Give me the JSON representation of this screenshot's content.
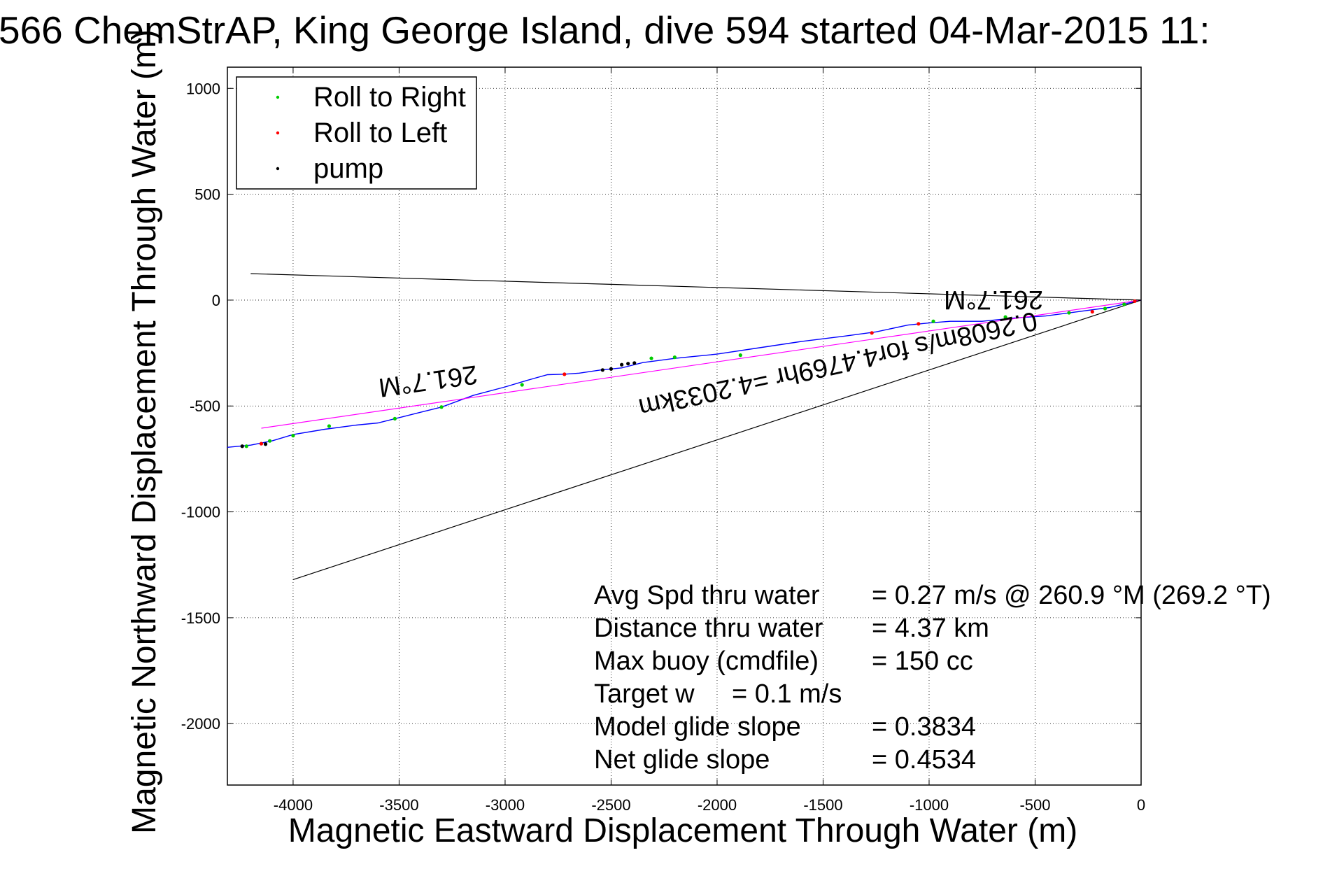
{
  "chart_data": {
    "type": "line",
    "title": "566 ChemStrAP, King George Island, dive 594 started 04-Mar-2015 11:",
    "xlabel": "Magnetic Eastward Displacement Through Water (m)",
    "ylabel": "Magnetic Northward Displacement Through Water (m)",
    "xlim": [
      -4310,
      0
    ],
    "ylim": [
      -2290,
      1100
    ],
    "xticks": [
      -4000,
      -3500,
      -3000,
      -2500,
      -2000,
      -1500,
      -1000,
      -500,
      0
    ],
    "yticks": [
      1000,
      500,
      0,
      -500,
      -1000,
      -1500,
      -2000
    ],
    "grid": true,
    "legend": {
      "position": "top-left",
      "entries": [
        {
          "label": "Roll to Right",
          "color": "#00cc00",
          "marker": "dot"
        },
        {
          "label": "Roll to Left",
          "color": "#ff0000",
          "marker": "dot"
        },
        {
          "label": "pump",
          "color": "#000000",
          "marker": "dot"
        }
      ]
    },
    "series": [
      {
        "color": "#0000ff",
        "x": [
          0,
          -150,
          -300,
          -450,
          -600,
          -750,
          -900,
          -1000,
          -1100,
          -1250,
          -1400,
          -1600,
          -1800,
          -2000,
          -2200,
          -2350,
          -2450,
          -2550,
          -2650,
          -2720,
          -2800,
          -2900,
          -3000,
          -3150,
          -3300,
          -3400,
          -3500,
          -3600,
          -3700,
          -3850,
          -4000,
          -4100,
          -4200,
          -4310
        ],
        "y": [
          0,
          -35,
          -55,
          -75,
          -85,
          -100,
          -100,
          -108,
          -118,
          -150,
          -170,
          -195,
          -225,
          -255,
          -275,
          -295,
          -320,
          -330,
          -345,
          -350,
          -352,
          -380,
          -410,
          -450,
          -505,
          -530,
          -555,
          -580,
          -590,
          -610,
          -635,
          -665,
          -685,
          -695
        ]
      },
      {
        "color": "#ff00ff",
        "x": [
          0,
          -4150
        ],
        "y": [
          0,
          -605
        ]
      },
      {
        "color": "#000000",
        "x": [
          0,
          -4200
        ],
        "y": [
          0,
          125
        ]
      },
      {
        "color": "#000000",
        "x": [
          0,
          -4000
        ],
        "y": [
          0,
          -1320
        ]
      }
    ],
    "points": {
      "roll_right": {
        "x": [
          -80,
          -170,
          -340,
          -640,
          -980,
          -1890,
          -2200,
          -2310,
          -2920,
          -3300,
          -3520,
          -3830,
          -4000,
          -4110,
          -4220
        ],
        "y": [
          -20,
          -40,
          -60,
          -80,
          -100,
          -260,
          -270,
          -275,
          -400,
          -505,
          -560,
          -595,
          -640,
          -665,
          -690
        ]
      },
      "roll_left": {
        "x": [
          -30,
          -230,
          -1050,
          -1270,
          -2720,
          -4150
        ],
        "y": [
          -5,
          -55,
          -112,
          -155,
          -350,
          -678
        ]
      },
      "pump": {
        "x": [
          -2500,
          -2540,
          -2450,
          -2420,
          -2390,
          -4240,
          -4130
        ],
        "y": [
          -325,
          -330,
          -305,
          -300,
          -297,
          -690,
          -680
        ]
      }
    },
    "annotations": [
      {
        "text": "261.7°M",
        "x": -850,
        "y": -40,
        "rotation": 180
      },
      {
        "text": "0.2608m/s for4.4769hr =4.2033km",
        "x": -1900,
        "y": -225,
        "rotation": 180
      },
      {
        "text": "261.7°M",
        "x": -3550,
        "y": -410,
        "rotation": 180
      }
    ],
    "stats": [
      {
        "label": "Avg Spd thru water",
        "value": "=  0.27 m/s @ 260.9 °M (269.2 °T)"
      },
      {
        "label": "Distance thru water",
        "value": "=  4.37 km"
      },
      {
        "label": "Max buoy (cmdfile)",
        "value": "= 150 cc"
      },
      {
        "label": "Target w",
        "value": "= 0.1 m/s"
      },
      {
        "label": "Model glide slope",
        "value": "= 0.3834"
      },
      {
        "label": "Net glide slope",
        "value": "= 0.4534"
      }
    ]
  }
}
